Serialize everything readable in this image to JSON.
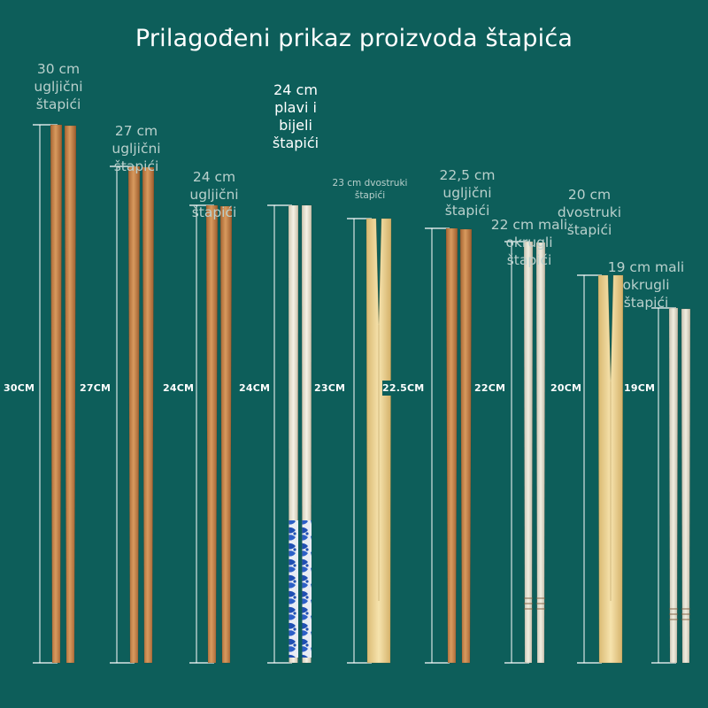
{
  "title": "Prilagođeni prikaz proizvoda štapića",
  "products": [
    {
      "label": "30 cm\nugljični\nštapići",
      "dimension": "30CM",
      "length_cm": 30,
      "style": "carbon"
    },
    {
      "label": "27 cm\nugljični\nštapići",
      "dimension": "27CM",
      "length_cm": 27,
      "style": "carbon"
    },
    {
      "label": "24 cm\nugljični\nštapići",
      "dimension": "24CM",
      "length_cm": 24,
      "style": "carbon"
    },
    {
      "label": "24 cm\nplavi i\nbijeli\nštapići",
      "dimension": "24CM",
      "length_cm": 24,
      "style": "blue-white"
    },
    {
      "label": "23 cm dvostruki\nštapići",
      "dimension": "23CM",
      "length_cm": 23,
      "style": "twin"
    },
    {
      "label": "22,5 cm\nugljični\nštapići",
      "dimension": "22.5CM",
      "length_cm": 22.5,
      "style": "carbon"
    },
    {
      "label": "22 cm mali\nokrugli\nštapići",
      "dimension": "22CM",
      "length_cm": 22,
      "style": "round"
    },
    {
      "label": "20 cm\ndvostruki\nštapići",
      "dimension": "20CM",
      "length_cm": 20,
      "style": "twin"
    },
    {
      "label": "19 cm mali\nokrugli\nštapići",
      "dimension": "19CM",
      "length_cm": 19,
      "style": "round"
    }
  ],
  "colors": {
    "background": "#0d5e5a",
    "carbon": "#c8874e",
    "bamboo": "#efd497",
    "round": "#e9e4d3",
    "blue_pattern": "#1f4fb3"
  }
}
